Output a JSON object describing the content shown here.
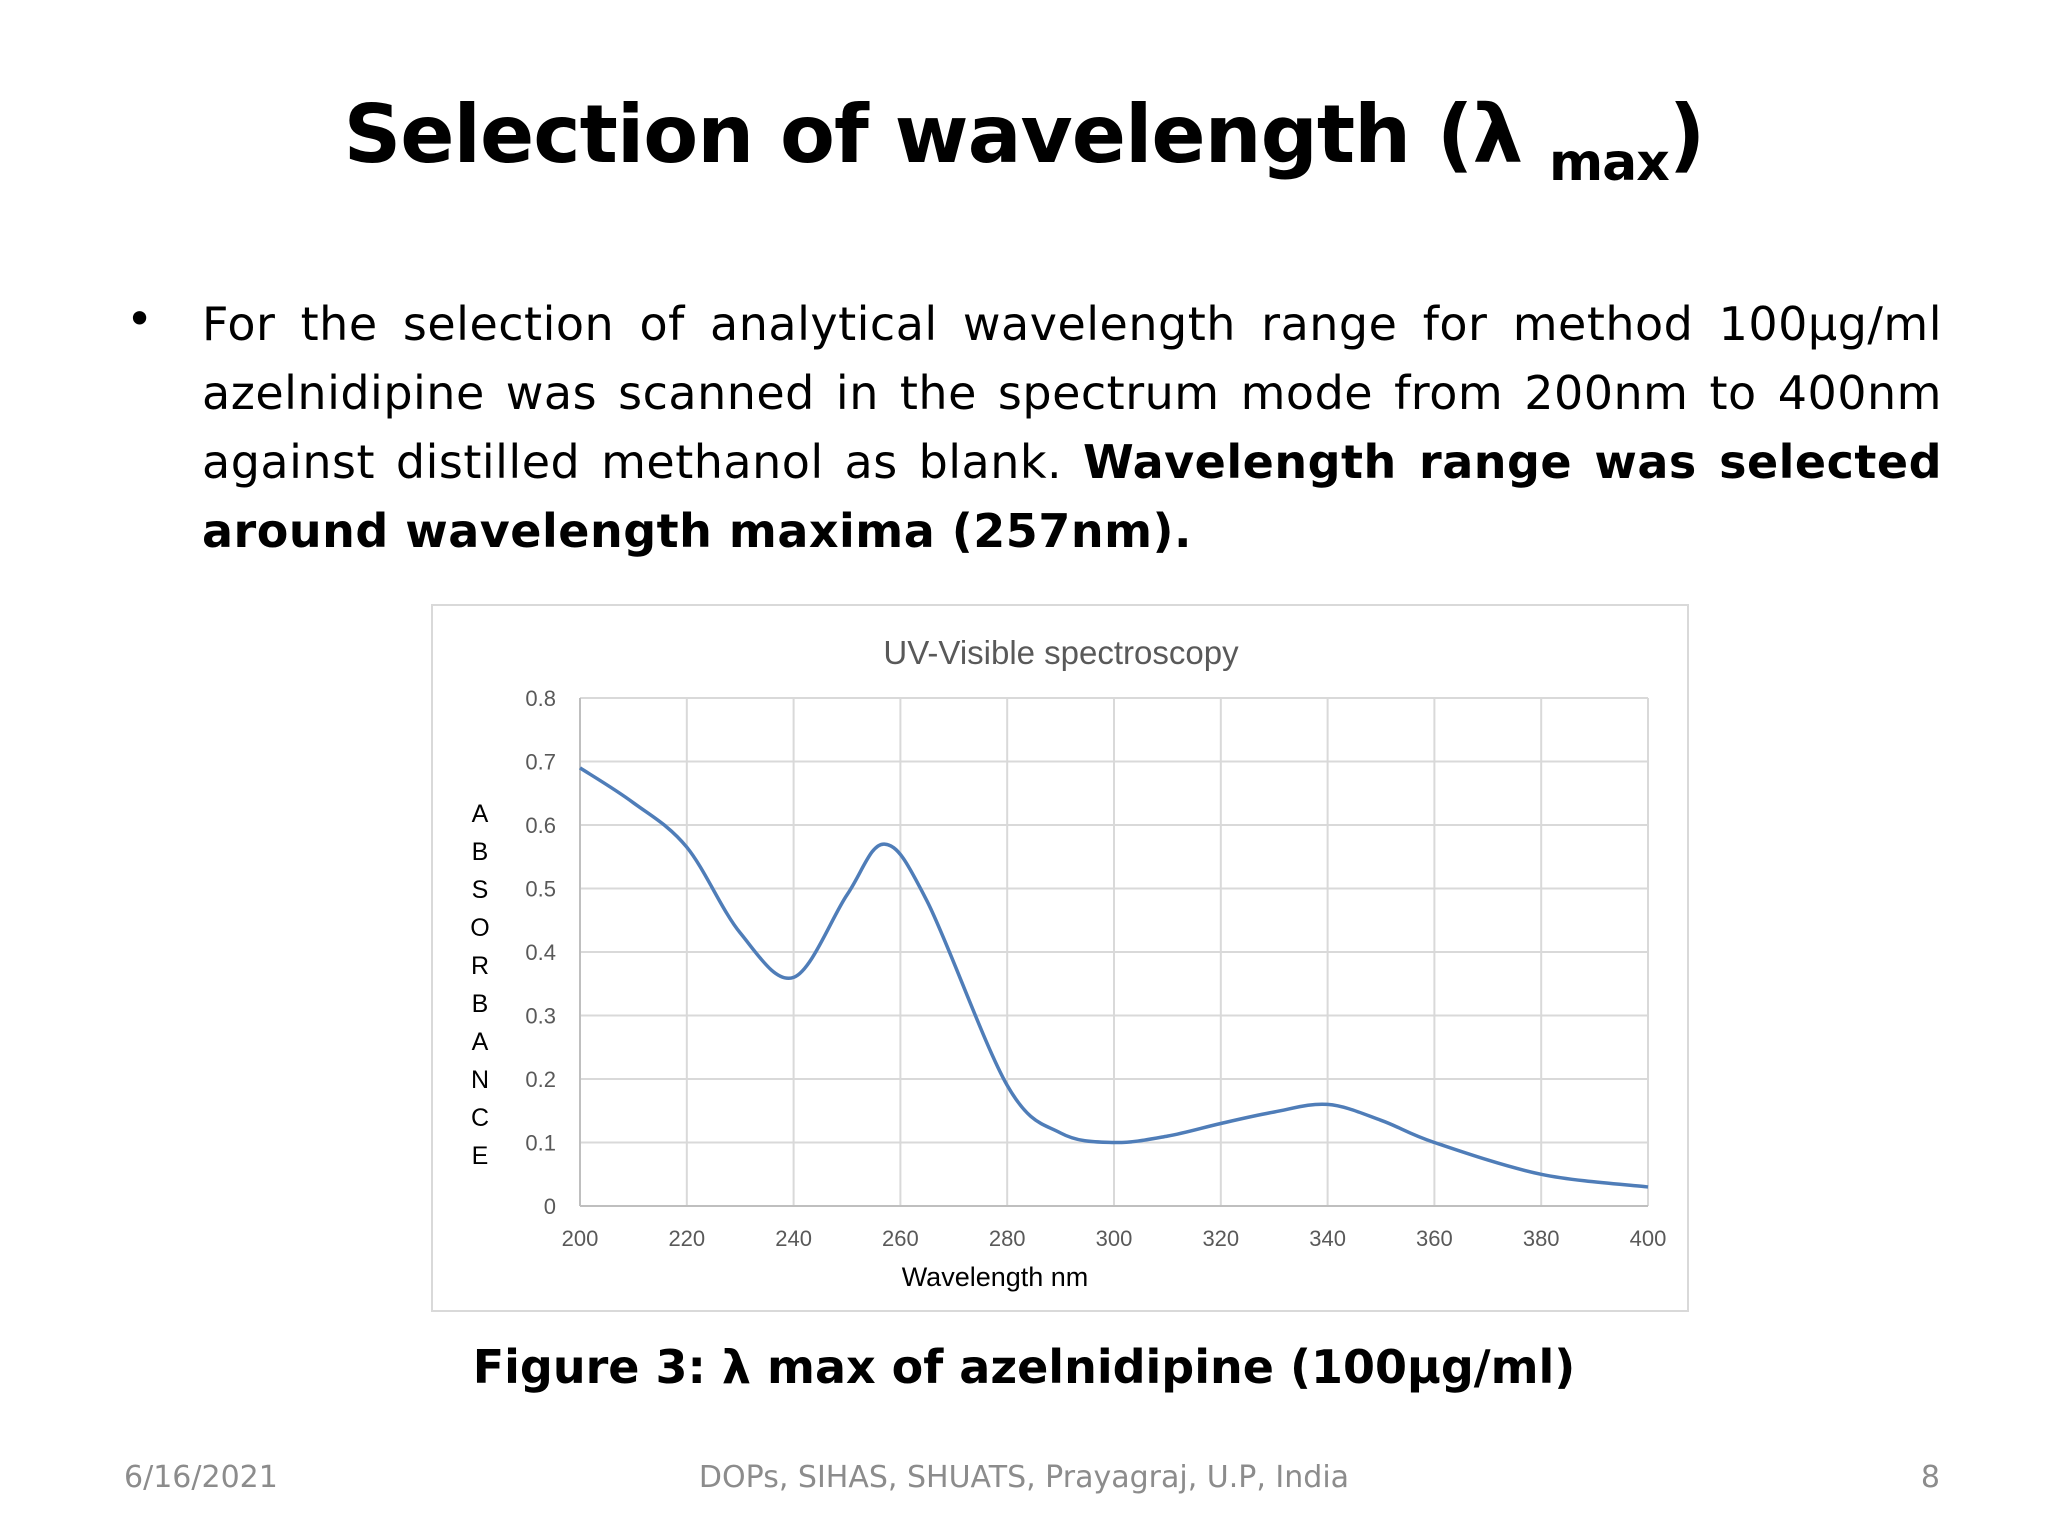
{
  "slide": {
    "title_main": "Selection of wavelength (λ ",
    "title_sub": "max",
    "title_end": ")",
    "bullet_symbol": "•",
    "body_plain": "For the selection of analytical wavelength range for method 100µg/ml azelnidipine was scanned in the spectrum mode from 200nm to 400nm against distilled methanol as blank. ",
    "body_bold": "Wavelength range was selected around wavelength maxima (257nm).",
    "caption": "Figure 3: λ max of azelnidipine (100µg/ml)",
    "footer_date": "6/16/2021",
    "footer_center": "DOPs, SIHAS, SHUATS, Prayagraj, U.P, India",
    "footer_page": "8"
  },
  "chart_data": {
    "type": "line",
    "title": "UV-Visible spectroscopy",
    "xlabel": "Wavelength nm",
    "ylabel": "ABSORBANCE",
    "xlim": [
      200,
      400
    ],
    "ylim": [
      0,
      0.8
    ],
    "xticks": [
      200,
      220,
      240,
      260,
      280,
      300,
      320,
      340,
      360,
      380,
      400
    ],
    "yticks": [
      0,
      0.1,
      0.2,
      0.3,
      0.4,
      0.5,
      0.6,
      0.7,
      0.8
    ],
    "grid": true,
    "legend": "none",
    "series": [
      {
        "color": "#4f7db8",
        "x": [
          200,
          210,
          220,
          230,
          240,
          250,
          257,
          265,
          280,
          290,
          300,
          310,
          320,
          330,
          340,
          350,
          360,
          380,
          400
        ],
        "y": [
          0.69,
          0.635,
          0.565,
          0.43,
          0.36,
          0.49,
          0.57,
          0.48,
          0.19,
          0.115,
          0.1,
          0.11,
          0.13,
          0.148,
          0.16,
          0.135,
          0.1,
          0.05,
          0.03
        ]
      }
    ]
  }
}
